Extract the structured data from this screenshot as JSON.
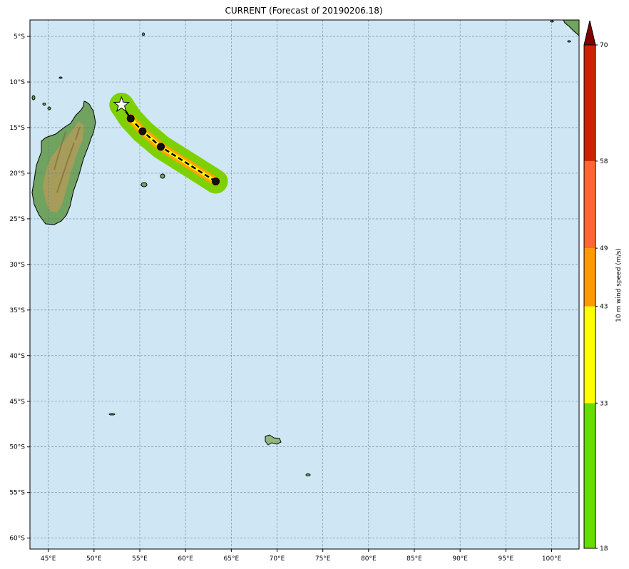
{
  "title": "CURRENT (Forecast of 20190206.18)",
  "map": {
    "lon_range": [
      43,
      103
    ],
    "lat_range": [
      -61.2,
      -3.2
    ],
    "x_ticks": [
      {
        "lon": 45,
        "label": "45°E"
      },
      {
        "lon": 50,
        "label": "50°E"
      },
      {
        "lon": 55,
        "label": "55°E"
      },
      {
        "lon": 60,
        "label": "60°E"
      },
      {
        "lon": 65,
        "label": "65°E"
      },
      {
        "lon": 70,
        "label": "70°E"
      },
      {
        "lon": 75,
        "label": "75°E"
      },
      {
        "lon": 80,
        "label": "80°E"
      },
      {
        "lon": 85,
        "label": "85°E"
      },
      {
        "lon": 90,
        "label": "90°E"
      },
      {
        "lon": 95,
        "label": "95°E"
      },
      {
        "lon": 100,
        "label": "100°E"
      }
    ],
    "y_ticks": [
      {
        "lat": -5,
        "label": "5°S"
      },
      {
        "lat": -10,
        "label": "10°S"
      },
      {
        "lat": -15,
        "label": "15°S"
      },
      {
        "lat": -20,
        "label": "20°S"
      },
      {
        "lat": -25,
        "label": "25°S"
      },
      {
        "lat": -30,
        "label": "30°S"
      },
      {
        "lat": -35,
        "label": "35°S"
      },
      {
        "lat": -40,
        "label": "40°S"
      },
      {
        "lat": -45,
        "label": "45°S"
      },
      {
        "lat": -50,
        "label": "50°S"
      },
      {
        "lat": -55,
        "label": "55°S"
      },
      {
        "lat": -60,
        "label": "60°S"
      }
    ],
    "ocean_color": "#cfe6f5",
    "grid": true
  },
  "chart_data": {
    "type": "scatter",
    "series": [
      {
        "values": [
          {
            "lon": 53.0,
            "lat": -12.5
          },
          {
            "lon": 54.0,
            "lat": -14.0
          },
          {
            "lon": 55.3,
            "lat": -15.4
          },
          {
            "lon": 57.3,
            "lat": -17.1
          },
          {
            "lon": 63.3,
            "lat": -20.9
          }
        ]
      }
    ],
    "start_marker": "star",
    "track_points": [
      {
        "lon": 54.0,
        "lat": -14.0
      },
      {
        "lon": 55.3,
        "lat": -15.4
      },
      {
        "lon": 57.3,
        "lat": -17.1
      },
      {
        "lon": 63.3,
        "lat": -20.9
      }
    ]
  },
  "colorbar": {
    "label": "10 m wind speed (m/s)",
    "levels": [
      18,
      33,
      43,
      49,
      58,
      70
    ],
    "colors": [
      "#66dd00",
      "#ffff00",
      "#ff9900",
      "#ff6633",
      "#cc2200"
    ],
    "extend_color": "#800000",
    "tick_labels": [
      "18",
      "33",
      "43",
      "49",
      "58",
      "70"
    ]
  },
  "colors": {
    "swath": "#7ed000",
    "track_inner": "#ffa500",
    "track_core": "#ffff00",
    "land_low": "#5f9e5a",
    "land_high": "#b89b5a"
  }
}
